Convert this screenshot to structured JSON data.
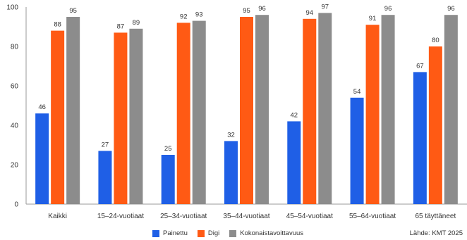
{
  "chart_data": {
    "type": "bar",
    "categories": [
      "Kaikki",
      "15–24-vuotiaat",
      "25–34-vuotiaat",
      "35–44-vuotiaat",
      "45–54-vuotiaat",
      "55–64-vuotiaat",
      "65 täyttäneet"
    ],
    "series": [
      {
        "name": "Painettu",
        "color": "#1f5fe6",
        "values": [
          46,
          27,
          25,
          32,
          42,
          54,
          67
        ]
      },
      {
        "name": "Digi",
        "color": "#ff5a14",
        "values": [
          88,
          87,
          92,
          95,
          94,
          91,
          80
        ]
      },
      {
        "name": "Kokonaistavoittavuus",
        "color": "#8c8c8c",
        "values": [
          95,
          89,
          93,
          96,
          97,
          96,
          96
        ]
      }
    ],
    "y_ticks": [
      0,
      20,
      40,
      60,
      80,
      100
    ],
    "ylim": [
      0,
      100
    ],
    "grid": false,
    "legend_position": "bottom-center",
    "source": "Lähde: KMT 2025"
  }
}
